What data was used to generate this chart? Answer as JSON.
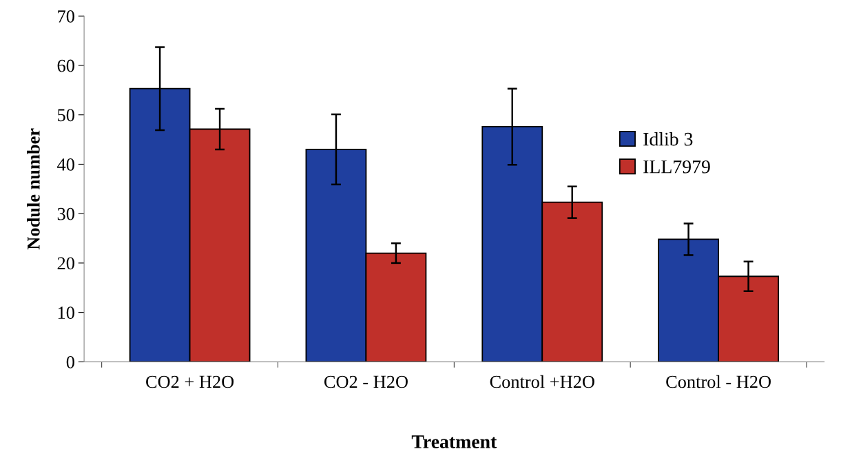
{
  "chart_data": {
    "type": "bar",
    "xlabel": "Treatment",
    "ylabel": "Nodule number",
    "categories": [
      "CO2 + H2O",
      "CO2 - H2O",
      "Control +H2O",
      "Control - H2O"
    ],
    "series": [
      {
        "name": "Idlib 3",
        "color": "#1f3f9f",
        "values": [
          55.3,
          43,
          47.6,
          24.8
        ],
        "errors": [
          8.4,
          7.1,
          7.7,
          3.2
        ]
      },
      {
        "name": "ILL7979",
        "color": "#c0302a",
        "values": [
          47.1,
          22,
          32.3,
          17.3
        ],
        "errors": [
          4.1,
          2,
          3.2,
          3
        ]
      }
    ],
    "ylim": [
      0,
      70
    ],
    "yticks": [
      0,
      10,
      20,
      30,
      40,
      50,
      60,
      70
    ],
    "legend": "right",
    "grid": false
  }
}
